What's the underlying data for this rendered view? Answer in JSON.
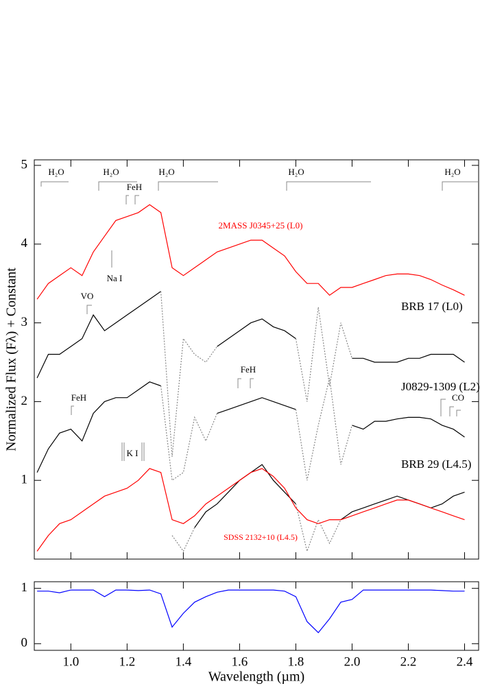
{
  "chart_data": [
    {
      "type": "line",
      "ylabel": "Normalized Flux (Fλ) + Constant",
      "x": [
        0.88,
        0.92,
        0.96,
        1.0,
        1.04,
        1.08,
        1.12,
        1.16,
        1.2,
        1.24,
        1.28,
        1.32,
        1.36,
        1.4,
        1.44,
        1.48,
        1.52,
        1.56,
        1.6,
        1.64,
        1.68,
        1.72,
        1.76,
        1.8,
        1.84,
        1.88,
        1.92,
        1.96,
        2.0,
        2.04,
        2.08,
        2.12,
        2.16,
        2.2,
        2.24,
        2.28,
        2.32,
        2.36,
        2.4
      ],
      "xlim": [
        0.87,
        2.45
      ],
      "xticks": [
        1,
        1.2,
        1.4,
        1.6,
        1.8,
        2,
        2.2,
        2.4
      ],
      "ylim": [
        0,
        5.07
      ],
      "yticks": [
        1,
        2,
        3,
        4,
        5
      ],
      "series": [
        {
          "name": "2MASS J0345+25 (L0)",
          "color": "#ff0000",
          "style": "solid",
          "values": [
            3.3,
            3.5,
            3.6,
            3.7,
            3.6,
            3.9,
            4.1,
            4.3,
            4.35,
            4.4,
            4.5,
            4.4,
            3.7,
            3.6,
            3.7,
            3.8,
            3.9,
            3.95,
            4.0,
            4.05,
            4.05,
            3.95,
            3.85,
            3.65,
            3.5,
            3.5,
            3.35,
            3.45,
            3.45,
            3.5,
            3.55,
            3.6,
            3.62,
            3.62,
            3.6,
            3.55,
            3.48,
            3.42,
            3.35
          ]
        },
        {
          "name": "BRB 17 (L0)",
          "color": "#000000",
          "style": "solid",
          "values": [
            2.3,
            2.6,
            2.6,
            2.7,
            2.8,
            3.1,
            2.9,
            3.0,
            3.1,
            3.2,
            3.3,
            3.4,
            null,
            null,
            null,
            null,
            2.7,
            2.8,
            2.9,
            3.0,
            3.05,
            2.95,
            2.9,
            2.8,
            null,
            null,
            null,
            null,
            2.55,
            2.55,
            2.5,
            2.5,
            2.5,
            2.55,
            2.55,
            2.6,
            2.6,
            2.6,
            2.5
          ]
        },
        {
          "color": "#888888",
          "style": "dotted",
          "values": [
            null,
            null,
            null,
            null,
            null,
            null,
            null,
            null,
            null,
            null,
            null,
            3.4,
            1.3,
            2.8,
            2.6,
            2.5,
            2.7,
            null,
            null,
            null,
            null,
            null,
            null,
            2.8,
            2.0,
            3.2,
            2.2,
            3.0,
            2.55,
            null,
            null,
            null,
            null,
            null,
            null,
            null,
            null,
            null,
            null
          ]
        },
        {
          "name": "J0829-1309 (L2)",
          "color": "#000000",
          "style": "solid",
          "values": [
            1.1,
            1.4,
            1.6,
            1.65,
            1.5,
            1.85,
            2.0,
            2.05,
            2.05,
            2.15,
            2.25,
            2.2,
            null,
            null,
            null,
            null,
            1.85,
            1.9,
            1.95,
            2.0,
            2.05,
            2.0,
            1.95,
            1.9,
            null,
            null,
            null,
            null,
            1.7,
            1.65,
            1.75,
            1.75,
            1.78,
            1.8,
            1.8,
            1.78,
            1.7,
            1.65,
            1.55
          ]
        },
        {
          "color": "#888888",
          "style": "dotted",
          "values": [
            null,
            null,
            null,
            null,
            null,
            null,
            null,
            null,
            null,
            null,
            null,
            2.2,
            1.0,
            1.1,
            1.8,
            1.5,
            1.85,
            null,
            null,
            null,
            null,
            null,
            null,
            1.9,
            1.0,
            1.7,
            2.3,
            1.2,
            1.7,
            null,
            null,
            null,
            null,
            null,
            null,
            null,
            null,
            null,
            null
          ]
        },
        {
          "name": "BRB 29 (L4.5)",
          "color": "#000000",
          "style": "solid",
          "values": [
            null,
            null,
            null,
            null,
            null,
            null,
            null,
            null,
            null,
            null,
            null,
            null,
            null,
            null,
            0.4,
            0.6,
            0.7,
            0.85,
            1.0,
            1.1,
            1.2,
            1.0,
            0.85,
            0.7,
            null,
            null,
            null,
            0.5,
            0.6,
            0.65,
            0.7,
            0.75,
            0.8,
            0.75,
            0.7,
            0.65,
            0.7,
            0.8,
            0.85
          ]
        },
        {
          "color": "#888888",
          "style": "dotted",
          "values": [
            null,
            null,
            null,
            null,
            null,
            null,
            null,
            null,
            null,
            null,
            null,
            null,
            0.3,
            0.1,
            0.4,
            null,
            null,
            null,
            null,
            null,
            null,
            null,
            null,
            0.7,
            0.1,
            0.5,
            0.2,
            0.5,
            null,
            null,
            null,
            null,
            null,
            null,
            null,
            null,
            null,
            null,
            null
          ]
        },
        {
          "name": "SDSS 2132+10 (L4.5)",
          "color": "#ff0000",
          "style": "solid",
          "values": [
            0.1,
            0.3,
            0.45,
            0.5,
            0.6,
            0.7,
            0.8,
            0.85,
            0.9,
            1.0,
            1.15,
            1.1,
            0.5,
            0.45,
            0.55,
            0.7,
            0.8,
            0.9,
            1.0,
            1.1,
            1.15,
            1.05,
            0.9,
            0.65,
            0.5,
            0.45,
            0.5,
            0.5,
            0.55,
            0.6,
            0.65,
            0.7,
            0.75,
            0.75,
            0.7,
            0.65,
            0.6,
            0.55,
            0.5
          ]
        }
      ],
      "annotations": [
        "H₂O",
        "H₂O",
        "H₂O",
        "H₂O",
        "H₂O",
        "FeH",
        "Na I",
        "VO",
        "FeH",
        "K I",
        "FeH",
        "CO"
      ]
    },
    {
      "type": "line",
      "xlabel": "Wavelength  (µm)",
      "x": [
        0.88,
        0.92,
        0.96,
        1.0,
        1.04,
        1.08,
        1.12,
        1.16,
        1.2,
        1.24,
        1.28,
        1.32,
        1.36,
        1.4,
        1.44,
        1.48,
        1.52,
        1.56,
        1.6,
        1.64,
        1.68,
        1.72,
        1.76,
        1.8,
        1.84,
        1.88,
        1.92,
        1.96,
        2.0,
        2.04,
        2.08,
        2.12,
        2.16,
        2.2,
        2.24,
        2.28,
        2.32,
        2.36,
        2.4
      ],
      "xlim": [
        0.87,
        2.45
      ],
      "xticks": [
        {
          "value": 1,
          "label": "1.0"
        },
        1.2,
        1.4,
        1.6,
        1.8,
        {
          "value": 2,
          "label": "2.0"
        },
        2.2,
        2.4
      ],
      "ylim": [
        -0.12,
        1.12
      ],
      "yticks": [
        0,
        1
      ],
      "series": [
        {
          "color": "#0000ff",
          "style": "solid",
          "values": [
            0.95,
            0.95,
            0.92,
            0.97,
            0.97,
            0.97,
            0.85,
            0.97,
            0.97,
            0.96,
            0.97,
            0.9,
            0.3,
            0.55,
            0.75,
            0.85,
            0.93,
            0.97,
            0.97,
            0.97,
            0.97,
            0.97,
            0.95,
            0.85,
            0.4,
            0.2,
            0.45,
            0.75,
            0.8,
            0.97,
            0.97,
            0.97,
            0.97,
            0.97,
            0.97,
            0.97,
            0.96,
            0.95,
            0.95
          ]
        }
      ]
    }
  ]
}
